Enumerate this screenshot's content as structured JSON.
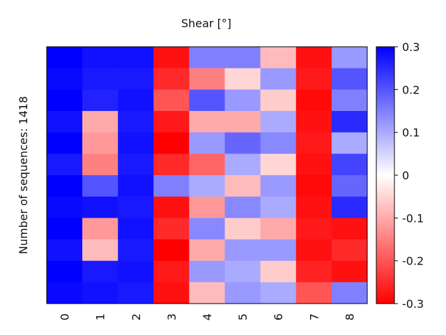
{
  "chart_data": {
    "type": "heatmap",
    "title": "Shear [°]",
    "ylabel": "Number of sequences: 1418",
    "xlabel": "",
    "columns": [
      "0",
      "1",
      "2",
      "3",
      "4",
      "5",
      "6",
      "7",
      "8"
    ],
    "row_count": 1418,
    "colorbar": {
      "min": -0.3,
      "max": 0.3,
      "ticks": [
        "0.3",
        "0.2",
        "0.1",
        "0",
        "-0.1",
        "-0.2",
        "-0.3"
      ],
      "tick_values": [
        0.3,
        0.2,
        0.1,
        0,
        -0.1,
        -0.2,
        -0.3
      ],
      "colors": {
        "low": "#ff0000",
        "mid": "#ffffff",
        "high": "#0000ff"
      }
    },
    "approx_column_values": [
      [
        0.3,
        0.29,
        0.3,
        0.28,
        0.3,
        0.27,
        0.3,
        0.29,
        0.3,
        0.28,
        0.3,
        0.29
      ],
      [
        0.28,
        0.27,
        0.26,
        -0.1,
        -0.12,
        -0.15,
        0.2,
        0.28,
        -0.12,
        -0.08,
        0.27,
        0.28
      ],
      [
        0.28,
        0.27,
        0.28,
        0.27,
        0.28,
        0.27,
        0.28,
        0.27,
        0.28,
        0.27,
        0.28,
        0.27
      ],
      [
        -0.28,
        -0.25,
        -0.2,
        -0.27,
        -0.3,
        -0.25,
        0.15,
        -0.28,
        -0.25,
        -0.3,
        -0.27,
        -0.28
      ],
      [
        0.15,
        -0.15,
        0.2,
        -0.1,
        0.12,
        -0.18,
        0.1,
        -0.12,
        0.14,
        -0.1,
        0.12,
        -0.08
      ],
      [
        0.15,
        -0.05,
        0.12,
        -0.1,
        0.18,
        0.1,
        -0.08,
        0.14,
        -0.06,
        0.12,
        0.1,
        0.12
      ],
      [
        -0.08,
        0.12,
        -0.06,
        0.1,
        0.14,
        -0.05,
        0.12,
        0.1,
        -0.1,
        0.12,
        -0.06,
        0.1
      ],
      [
        -0.28,
        -0.27,
        -0.29,
        -0.28,
        -0.27,
        -0.28,
        -0.29,
        -0.28,
        -0.27,
        -0.28,
        -0.26,
        -0.2
      ],
      [
        0.12,
        0.2,
        0.15,
        0.25,
        0.1,
        0.22,
        0.18,
        0.25,
        -0.28,
        -0.25,
        -0.28,
        0.15
      ]
    ]
  }
}
